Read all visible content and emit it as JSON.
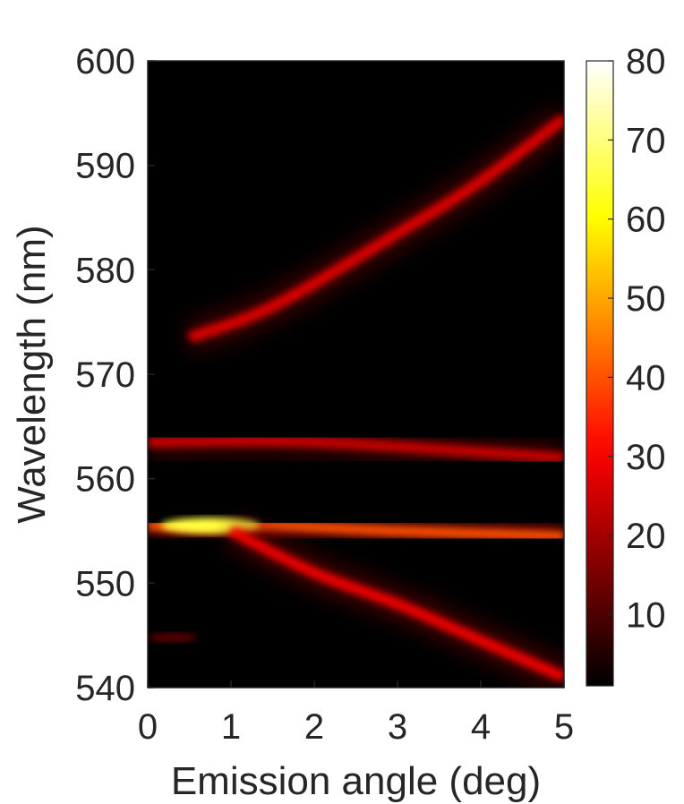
{
  "chart_data": {
    "type": "heatmap",
    "title": "",
    "xlabel": "Emission angle (deg)",
    "ylabel": "Wavelength (nm)",
    "xlim": [
      0,
      5
    ],
    "ylim": [
      540,
      600
    ],
    "x_ticks": [
      "0",
      "1",
      "2",
      "3",
      "4",
      "5"
    ],
    "y_ticks": [
      "540",
      "550",
      "560",
      "570",
      "580",
      "590",
      "600"
    ],
    "colormap": "hot",
    "colorbar": {
      "range": [
        1,
        80
      ],
      "ticks": [
        "10",
        "20",
        "30",
        "40",
        "50",
        "60",
        "70",
        "80"
      ],
      "tick_values": [
        10,
        20,
        30,
        40,
        50,
        60,
        70,
        80
      ]
    },
    "features": [
      {
        "kind": "band",
        "points": [
          [
            0.5,
            573.5
          ],
          [
            1.5,
            576.5
          ],
          [
            3.0,
            583.5
          ],
          [
            4.0,
            588.5
          ],
          [
            5.0,
            594.5
          ]
        ],
        "peak": 28
      },
      {
        "kind": "band",
        "points": [
          [
            0,
            563.5
          ],
          [
            2,
            563.5
          ],
          [
            5,
            562.0
          ]
        ],
        "peak": 25
      },
      {
        "kind": "band",
        "points": [
          [
            0,
            555.5
          ],
          [
            1.5,
            555.5
          ],
          [
            3,
            555.0
          ],
          [
            5,
            554.5
          ]
        ],
        "peak": 40,
        "hot_center": 0.75,
        "hot_peak": 65
      },
      {
        "kind": "band",
        "points": [
          [
            1.0,
            555.0
          ],
          [
            2.0,
            551.0
          ],
          [
            3.0,
            548.0
          ],
          [
            4.0,
            544.5
          ],
          [
            5.0,
            541.0
          ]
        ],
        "peak": 30
      },
      {
        "kind": "spot",
        "x": 0.3,
        "y": 544.8,
        "peak": 12
      }
    ]
  }
}
